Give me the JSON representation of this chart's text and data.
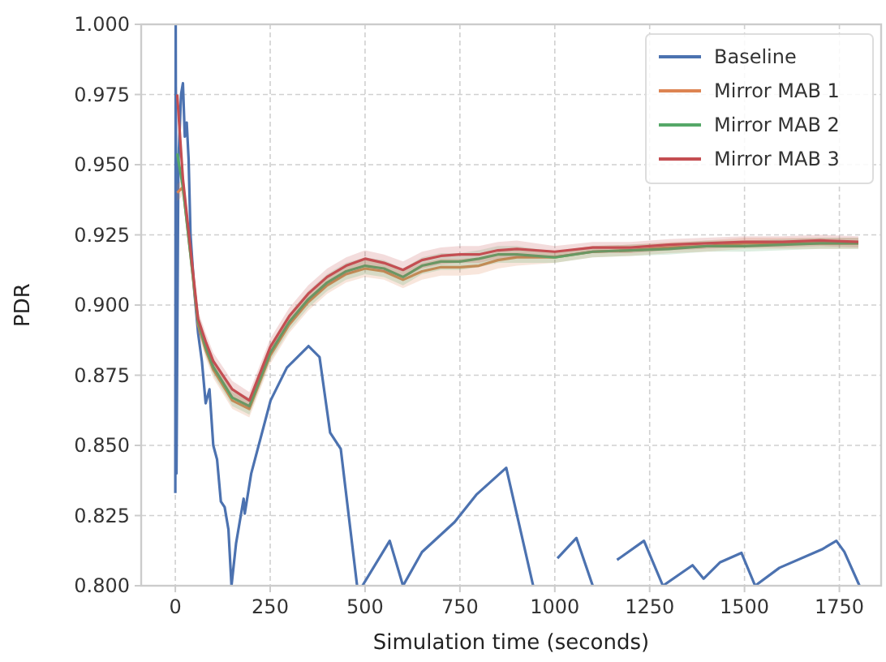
{
  "chart_data": {
    "type": "line",
    "xlabel": "Simulation time (seconds)",
    "ylabel": "PDR",
    "xlim": [
      -90,
      1860
    ],
    "ylim": [
      0.8,
      1.0
    ],
    "xticks": [
      0,
      250,
      500,
      750,
      1000,
      1250,
      1500,
      1750
    ],
    "yticks": [
      {
        "value": 0.8,
        "label": "0.800"
      },
      {
        "value": 0.825,
        "label": "0.825"
      },
      {
        "value": 0.85,
        "label": "0.850"
      },
      {
        "value": 0.875,
        "label": "0.875"
      },
      {
        "value": 0.9,
        "label": "0.900"
      },
      {
        "value": 0.925,
        "label": "0.925"
      },
      {
        "value": 0.95,
        "label": "0.950"
      },
      {
        "value": 0.975,
        "label": "0.975"
      },
      {
        "value": 1.0,
        "label": "1.000"
      }
    ],
    "grid": true,
    "legend": "top right",
    "line_style": "solid",
    "marker": "none",
    "series": [
      {
        "name": "Baseline",
        "color": "#4c72b0",
        "x": [
          0,
          1,
          3,
          8,
          15,
          20,
          25,
          30,
          35,
          40,
          50,
          60,
          70,
          80,
          90,
          100,
          110,
          120,
          130,
          140,
          148,
          160,
          180,
          183,
          200,
          251,
          294,
          351,
          380,
          408,
          436,
          479,
          486,
          493,
          565,
          600,
          650,
          736,
          793,
          872,
          943,
          950,
          1007,
          1057,
          1100,
          1110,
          1164,
          1235,
          1285,
          1363,
          1392,
          1435,
          1492,
          1528,
          1592,
          1706,
          1742,
          1763,
          1803
        ],
        "values": [
          0.833,
          1.0,
          0.84,
          0.95,
          0.975,
          0.979,
          0.96,
          0.965,
          0.952,
          0.925,
          0.905,
          0.89,
          0.88,
          0.865,
          0.87,
          0.85,
          0.845,
          0.83,
          0.828,
          0.82,
          0.8,
          0.815,
          0.831,
          0.8257,
          0.84,
          0.866,
          0.8777,
          0.8854,
          0.8815,
          0.8545,
          0.8487,
          0.8,
          null,
          0.8,
          0.816,
          0.8,
          0.812,
          0.8227,
          0.8324,
          0.842,
          0.8,
          null,
          0.8098,
          0.817,
          0.8,
          null,
          0.8092,
          0.816,
          0.8,
          0.8073,
          0.8025,
          0.8083,
          0.8117,
          0.8,
          0.8064,
          0.8131,
          0.816,
          0.8121,
          0.8
        ]
      },
      {
        "name": "Mirror MAB 1",
        "color": "#dd8452",
        "x": [
          5,
          20,
          40,
          60,
          80,
          100,
          150,
          195,
          250,
          300,
          350,
          400,
          450,
          500,
          550,
          600,
          650,
          700,
          750,
          800,
          850,
          900,
          1000,
          1100,
          1200,
          1300,
          1400,
          1500,
          1600,
          1700,
          1800
        ],
        "values": [
          0.94,
          0.942,
          0.918,
          0.893,
          0.884,
          0.877,
          0.866,
          0.863,
          0.882,
          0.893,
          0.901,
          0.907,
          0.911,
          0.913,
          0.912,
          0.909,
          0.912,
          0.9135,
          0.9135,
          0.914,
          0.916,
          0.917,
          0.917,
          0.919,
          0.9195,
          0.9205,
          0.921,
          0.922,
          0.922,
          0.922,
          0.922
        ],
        "lower": [
          0.937,
          0.939,
          0.915,
          0.89,
          0.881,
          0.874,
          0.863,
          0.86,
          0.879,
          0.89,
          0.898,
          0.904,
          0.908,
          0.91,
          0.909,
          0.906,
          0.909,
          0.9105,
          0.9105,
          0.911,
          0.913,
          0.914,
          0.915,
          0.917,
          0.9175,
          0.9185,
          0.919,
          0.92,
          0.92,
          0.92,
          0.92
        ],
        "upper": [
          0.943,
          0.945,
          0.921,
          0.896,
          0.887,
          0.88,
          0.869,
          0.866,
          0.885,
          0.896,
          0.904,
          0.91,
          0.914,
          0.916,
          0.915,
          0.912,
          0.915,
          0.9165,
          0.9165,
          0.917,
          0.919,
          0.92,
          0.919,
          0.921,
          0.9215,
          0.9225,
          0.923,
          0.924,
          0.924,
          0.924,
          0.924
        ]
      },
      {
        "name": "Mirror MAB 2",
        "color": "#55a868",
        "x": [
          5,
          20,
          40,
          60,
          80,
          100,
          150,
          195,
          250,
          300,
          350,
          400,
          450,
          500,
          550,
          600,
          650,
          700,
          750,
          800,
          850,
          900,
          1000,
          1100,
          1200,
          1300,
          1400,
          1500,
          1600,
          1700,
          1800
        ],
        "values": [
          0.954,
          0.942,
          0.918,
          0.894,
          0.885,
          0.878,
          0.867,
          0.864,
          0.883,
          0.894,
          0.902,
          0.908,
          0.912,
          0.914,
          0.913,
          0.91,
          0.914,
          0.9155,
          0.9155,
          0.9165,
          0.918,
          0.918,
          0.917,
          0.919,
          0.9195,
          0.92,
          0.921,
          0.921,
          0.9215,
          0.922,
          0.922
        ],
        "lower": [
          0.951,
          0.939,
          0.915,
          0.891,
          0.882,
          0.875,
          0.864,
          0.861,
          0.88,
          0.891,
          0.899,
          0.905,
          0.909,
          0.911,
          0.91,
          0.907,
          0.911,
          0.9125,
          0.9125,
          0.9135,
          0.915,
          0.915,
          0.915,
          0.917,
          0.9175,
          0.918,
          0.919,
          0.919,
          0.9195,
          0.92,
          0.92
        ],
        "upper": [
          0.957,
          0.945,
          0.921,
          0.897,
          0.888,
          0.881,
          0.87,
          0.867,
          0.886,
          0.897,
          0.905,
          0.911,
          0.915,
          0.917,
          0.916,
          0.913,
          0.917,
          0.9185,
          0.9185,
          0.9195,
          0.921,
          0.921,
          0.919,
          0.921,
          0.9215,
          0.922,
          0.923,
          0.923,
          0.9235,
          0.924,
          0.924
        ]
      },
      {
        "name": "Mirror MAB 3",
        "color": "#c44e52",
        "x": [
          5,
          20,
          40,
          60,
          80,
          100,
          150,
          195,
          250,
          300,
          350,
          400,
          450,
          500,
          550,
          600,
          650,
          700,
          750,
          800,
          850,
          900,
          1000,
          1100,
          1200,
          1300,
          1400,
          1500,
          1600,
          1700,
          1800
        ],
        "values": [
          0.975,
          0.945,
          0.92,
          0.895,
          0.887,
          0.88,
          0.87,
          0.866,
          0.885,
          0.896,
          0.904,
          0.91,
          0.914,
          0.9165,
          0.915,
          0.9125,
          0.916,
          0.9175,
          0.918,
          0.918,
          0.9195,
          0.92,
          0.919,
          0.9205,
          0.9205,
          0.9215,
          0.922,
          0.9225,
          0.9225,
          0.923,
          0.9225
        ],
        "lower": [
          0.972,
          0.942,
          0.917,
          0.892,
          0.884,
          0.877,
          0.867,
          0.863,
          0.882,
          0.893,
          0.901,
          0.907,
          0.911,
          0.9135,
          0.912,
          0.9095,
          0.913,
          0.9145,
          0.915,
          0.915,
          0.9165,
          0.917,
          0.917,
          0.9185,
          0.9185,
          0.9195,
          0.92,
          0.9205,
          0.9205,
          0.921,
          0.9205
        ],
        "upper": [
          0.978,
          0.948,
          0.923,
          0.898,
          0.89,
          0.883,
          0.873,
          0.869,
          0.888,
          0.899,
          0.907,
          0.913,
          0.917,
          0.9195,
          0.918,
          0.9155,
          0.919,
          0.9205,
          0.921,
          0.921,
          0.9225,
          0.923,
          0.921,
          0.9225,
          0.9225,
          0.9235,
          0.924,
          0.9245,
          0.9245,
          0.925,
          0.9245
        ]
      }
    ]
  }
}
